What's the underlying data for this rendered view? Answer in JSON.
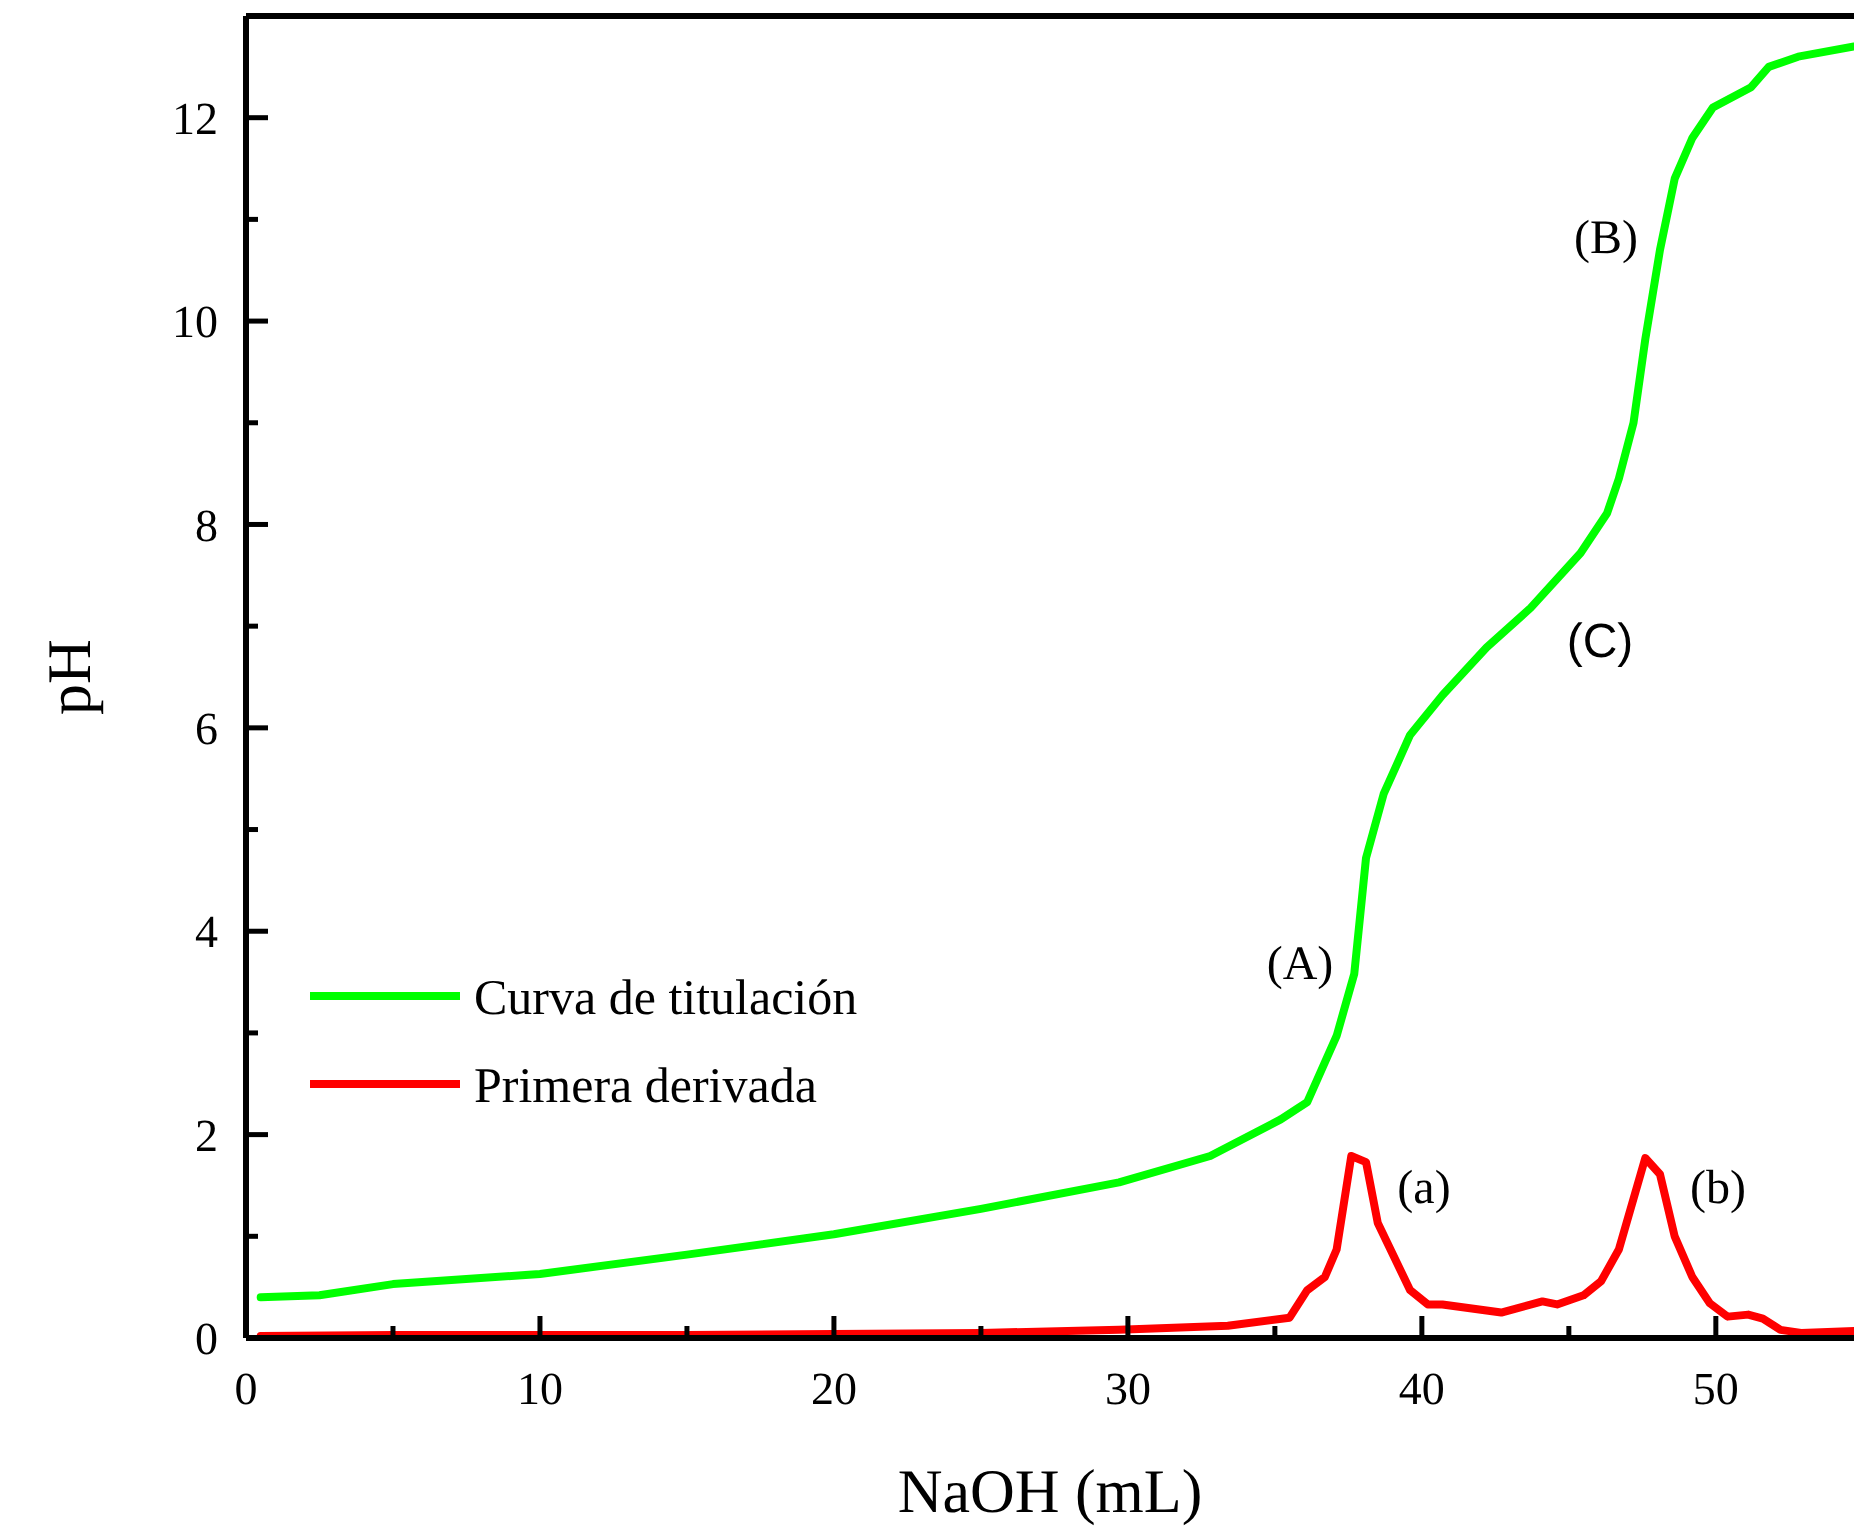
{
  "chart_data": {
    "type": "line",
    "xlabel": "NaOH (mL)",
    "ylabel": "pH",
    "xlim": [
      0,
      54.7
    ],
    "ylim": [
      0,
      13
    ],
    "xticks": [
      0,
      {
        "value": 5,
        "label": null
      },
      10,
      {
        "value": 15,
        "label": null
      },
      20,
      {
        "value": 25,
        "label": null
      },
      30,
      {
        "value": 35,
        "label": null
      },
      40,
      {
        "value": 45,
        "label": null
      },
      50
    ],
    "yticks": [
      0,
      {
        "value": 1,
        "label": null
      },
      2,
      {
        "value": 3,
        "label": null
      },
      4,
      {
        "value": 5,
        "label": null
      },
      6,
      {
        "value": 7,
        "label": null
      },
      8,
      {
        "value": 9,
        "label": null
      },
      10,
      {
        "value": 11,
        "label": null
      },
      12
    ],
    "legend": "left",
    "grid": false,
    "series": [
      {
        "name": "Curva de titulación",
        "color": "#00ff00",
        "x": [
          0.5,
          2.5,
          5,
          10,
          15,
          20,
          25,
          29.7,
          32.8,
          35.2,
          36.1,
          36.7,
          37.1,
          37.7,
          38.1,
          38.7,
          39.6,
          40.7,
          42.2,
          43.7,
          45.4,
          46.3,
          46.7,
          47.2,
          47.6,
          48.1,
          48.6,
          49.2,
          49.9,
          51.2,
          51.8,
          52.8,
          54.7
        ],
        "values": [
          0.4,
          0.42,
          0.53,
          0.63,
          0.82,
          1.02,
          1.27,
          1.53,
          1.79,
          2.15,
          2.32,
          2.71,
          2.97,
          3.58,
          4.72,
          5.35,
          5.93,
          6.32,
          6.79,
          7.18,
          7.72,
          8.11,
          8.45,
          9.0,
          9.82,
          10.7,
          11.4,
          11.8,
          12.1,
          12.3,
          12.5,
          12.6,
          12.7
        ]
      },
      {
        "name": "Primera derivada",
        "color": "#ff0000",
        "x": [
          0.5,
          5,
          10,
          15,
          20,
          25,
          29.7,
          33.4,
          35.5,
          36.1,
          36.7,
          37.1,
          37.6,
          38.1,
          38.5,
          39.6,
          40.2,
          40.7,
          42.2,
          42.7,
          44.1,
          44.6,
          45.5,
          46.1,
          46.7,
          47.6,
          48.1,
          48.6,
          49.2,
          49.8,
          50.4,
          51.1,
          51.6,
          52.2,
          52.9,
          54.7
        ],
        "values": [
          0.02,
          0.03,
          0.03,
          0.03,
          0.04,
          0.05,
          0.08,
          0.12,
          0.2,
          0.47,
          0.6,
          0.87,
          1.79,
          1.73,
          1.13,
          0.47,
          0.33,
          0.33,
          0.27,
          0.25,
          0.36,
          0.33,
          0.42,
          0.56,
          0.87,
          1.77,
          1.61,
          1.0,
          0.6,
          0.34,
          0.21,
          0.23,
          0.19,
          0.08,
          0.05,
          0.07
        ]
      }
    ],
    "annotations": [
      "(A)",
      "(B)",
      "(C)",
      "(a)",
      "(b)"
    ]
  }
}
